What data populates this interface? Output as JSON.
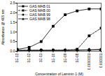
{
  "chart_data": {
    "type": "line",
    "x_label": "Concentration of Laminin 1 (M)",
    "y_label": "Absorbance @ 405 nm",
    "log": "x",
    "legend": "top-left",
    "x": [
      1e-13,
      1e-12,
      1e-11,
      1e-10,
      1e-09,
      1e-08,
      1e-07,
      1e-06
    ],
    "series": [
      {
        "name": "GAS MAB 01",
        "color": "#000000",
        "marker": "square",
        "line_style": "solid",
        "values": [
          0.1,
          0.2,
          0.5,
          1.3,
          1.9,
          2.1,
          2.2,
          2.2
        ]
      },
      {
        "name": "GAS MAB 00",
        "color": "#000000",
        "marker": "square",
        "line_style": "dashed",
        "values": [
          0.05,
          0.05,
          0.05,
          0.05,
          0.06,
          0.1,
          0.8,
          1.2
        ]
      },
      {
        "name": "GAS MAB 99",
        "color": "#000000",
        "marker": "circle",
        "line_style": "dotted",
        "values": [
          0.05,
          0.05,
          0.05,
          0.05,
          0.05,
          0.06,
          0.08,
          0.1
        ]
      },
      {
        "name": "GAS MAB 98",
        "color": "#000000",
        "marker": "triangle",
        "line_style": "solid",
        "values": [
          0.04,
          0.04,
          0.04,
          0.04,
          0.04,
          0.05,
          0.06,
          0.08
        ]
      }
    ],
    "xlim": [
      1e-13,
      1e-06
    ],
    "xticks": [
      {
        "value": 1e-13,
        "label": "1E-13"
      },
      {
        "value": 1e-12,
        "label": "1E-12"
      },
      {
        "value": 1e-11,
        "label": "1E-11"
      },
      {
        "value": 1e-10,
        "label": "1E-10"
      },
      {
        "value": 1e-09,
        "label": "1E-09"
      },
      {
        "value": 1e-08,
        "label": "1E-08"
      },
      {
        "value": 1e-07,
        "label": "0.0000001"
      },
      {
        "value": 1e-06,
        "label": "0.000001"
      }
    ],
    "ylim": [
      0,
      2.5
    ],
    "yticks": [
      {
        "value": 0,
        "label": "0.0"
      },
      {
        "value": 0.5,
        "label": "0.5"
      },
      {
        "value": 1,
        "label": "1.0"
      },
      {
        "value": 1.5,
        "label": "1.5"
      },
      {
        "value": 2,
        "label": "2.0"
      },
      {
        "value": 2.5,
        "label": "2.5"
      }
    ]
  }
}
